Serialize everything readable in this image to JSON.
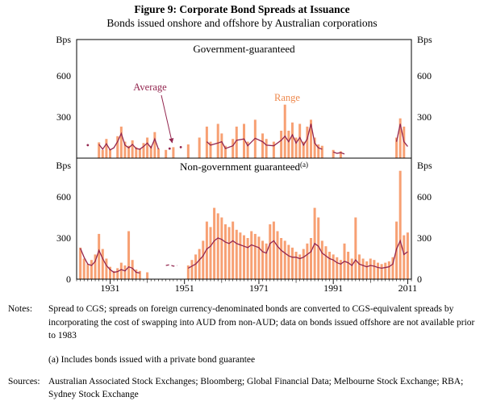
{
  "figure": {
    "title": "Figure 9: Corporate Bond Spreads at Issuance",
    "subtitle": "Bonds issued onshore and offshore by Australian corporations"
  },
  "chart_data": {
    "type": "bar+line",
    "unit": "Bps",
    "x_range": [
      1922,
      2012
    ],
    "x_ticks": [
      1931,
      1951,
      1971,
      1991,
      2011
    ],
    "y_ticks": [
      0,
      300,
      600
    ],
    "legend": {
      "average_label": "Average",
      "range_label": "Range"
    },
    "colors": {
      "range_bar": "#F7A073",
      "range_label": "#EE8A4F",
      "average_line": "#93264F",
      "axis": "#000000"
    },
    "panels": [
      {
        "title": "Government-guaranteed",
        "title_superscript": "",
        "ylabel": "Bps",
        "ylim": [
          0,
          870
        ],
        "bars": [
          [
            1928,
            115
          ],
          [
            1929,
            60
          ],
          [
            1930,
            140
          ],
          [
            1931,
            65
          ],
          [
            1933,
            160
          ],
          [
            1934,
            230
          ],
          [
            1935,
            120
          ],
          [
            1936,
            90
          ],
          [
            1937,
            130
          ],
          [
            1938,
            80
          ],
          [
            1939,
            70
          ],
          [
            1940,
            110
          ],
          [
            1941,
            150
          ],
          [
            1942,
            90
          ],
          [
            1943,
            190
          ],
          [
            1944,
            70
          ],
          [
            1946,
            60
          ],
          [
            1948,
            80
          ],
          [
            1952,
            100
          ],
          [
            1955,
            150
          ],
          [
            1957,
            230
          ],
          [
            1958,
            120
          ],
          [
            1960,
            250
          ],
          [
            1961,
            180
          ],
          [
            1962,
            90
          ],
          [
            1964,
            140
          ],
          [
            1965,
            230
          ],
          [
            1967,
            250
          ],
          [
            1968,
            120
          ],
          [
            1970,
            280
          ],
          [
            1972,
            180
          ],
          [
            1973,
            140
          ],
          [
            1975,
            120
          ],
          [
            1977,
            200
          ],
          [
            1978,
            390
          ],
          [
            1979,
            200
          ],
          [
            1980,
            260
          ],
          [
            1981,
            150
          ],
          [
            1982,
            250
          ],
          [
            1983,
            120
          ],
          [
            1984,
            230
          ],
          [
            1985,
            280
          ],
          [
            1986,
            150
          ],
          [
            1987,
            100
          ],
          [
            1988,
            90
          ],
          [
            1991,
            60
          ],
          [
            1993,
            50
          ],
          [
            2008,
            150
          ],
          [
            2009,
            290
          ],
          [
            2010,
            230
          ]
        ],
        "line_segments": [
          [
            [
              1928,
              100
            ],
            [
              1929,
              65
            ],
            [
              1930,
              105
            ],
            [
              1931,
              60
            ],
            [
              1932,
              75
            ],
            [
              1933,
              120
            ],
            [
              1934,
              180
            ],
            [
              1935,
              95
            ],
            [
              1936,
              75
            ],
            [
              1937,
              100
            ],
            [
              1938,
              70
            ],
            [
              1939,
              65
            ],
            [
              1940,
              85
            ],
            [
              1941,
              110
            ],
            [
              1942,
              75
            ],
            [
              1943,
              140
            ],
            [
              1944,
              65
            ]
          ],
          [
            [
              1957,
              120
            ],
            [
              1958,
              95
            ],
            [
              1960,
              110
            ],
            [
              1961,
              120
            ],
            [
              1962,
              70
            ],
            [
              1964,
              90
            ],
            [
              1965,
              130
            ],
            [
              1967,
              140
            ],
            [
              1968,
              90
            ],
            [
              1970,
              145
            ],
            [
              1972,
              120
            ],
            [
              1973,
              95
            ],
            [
              1975,
              90
            ],
            [
              1977,
              130
            ],
            [
              1978,
              160
            ],
            [
              1979,
              120
            ],
            [
              1980,
              170
            ],
            [
              1981,
              110
            ],
            [
              1982,
              150
            ],
            [
              1983,
              95
            ],
            [
              1984,
              140
            ],
            [
              1985,
              250
            ],
            [
              1986,
              110
            ],
            [
              1987,
              75
            ],
            [
              1988,
              65
            ]
          ],
          [
            [
              1991,
              45
            ],
            [
              1992,
              35
            ],
            [
              1993,
              40
            ],
            [
              1994,
              30
            ]
          ],
          [
            [
              2008,
              120
            ],
            [
              2009,
              250
            ],
            [
              2010,
              120
            ],
            [
              2011,
              85
            ]
          ]
        ],
        "dashed_segments": [],
        "line_points": [
          [
            1925,
            95
          ],
          [
            1947,
            70
          ],
          [
            1950,
            80
          ]
        ]
      },
      {
        "title": "Non-government guaranteed",
        "title_superscript": "(a)",
        "ylabel": "Bps",
        "ylim": [
          0,
          870
        ],
        "bars": [
          [
            1923,
            230
          ],
          [
            1924,
            150
          ],
          [
            1925,
            110
          ],
          [
            1926,
            140
          ],
          [
            1927,
            180
          ],
          [
            1928,
            330
          ],
          [
            1929,
            220
          ],
          [
            1930,
            150
          ],
          [
            1931,
            90
          ],
          [
            1932,
            60
          ],
          [
            1933,
            80
          ],
          [
            1934,
            120
          ],
          [
            1935,
            100
          ],
          [
            1936,
            350
          ],
          [
            1937,
            140
          ],
          [
            1938,
            70
          ],
          [
            1939,
            60
          ],
          [
            1941,
            50
          ],
          [
            1952,
            100
          ],
          [
            1953,
            140
          ],
          [
            1954,
            180
          ],
          [
            1955,
            220
          ],
          [
            1956,
            280
          ],
          [
            1957,
            420
          ],
          [
            1958,
            380
          ],
          [
            1959,
            520
          ],
          [
            1960,
            480
          ],
          [
            1961,
            450
          ],
          [
            1962,
            400
          ],
          [
            1963,
            380
          ],
          [
            1964,
            420
          ],
          [
            1965,
            360
          ],
          [
            1966,
            340
          ],
          [
            1967,
            320
          ],
          [
            1968,
            300
          ],
          [
            1969,
            350
          ],
          [
            1970,
            330
          ],
          [
            1971,
            310
          ],
          [
            1972,
            280
          ],
          [
            1973,
            260
          ],
          [
            1974,
            400
          ],
          [
            1975,
            420
          ],
          [
            1976,
            350
          ],
          [
            1977,
            300
          ],
          [
            1978,
            280
          ],
          [
            1979,
            250
          ],
          [
            1980,
            230
          ],
          [
            1981,
            200
          ],
          [
            1982,
            180
          ],
          [
            1983,
            220
          ],
          [
            1984,
            260
          ],
          [
            1985,
            300
          ],
          [
            1986,
            520
          ],
          [
            1987,
            450
          ],
          [
            1988,
            280
          ],
          [
            1989,
            240
          ],
          [
            1990,
            200
          ],
          [
            1991,
            180
          ],
          [
            1992,
            160
          ],
          [
            1993,
            140
          ],
          [
            1994,
            260
          ],
          [
            1995,
            200
          ],
          [
            1996,
            150
          ],
          [
            1997,
            450
          ],
          [
            1998,
            180
          ],
          [
            1999,
            150
          ],
          [
            2000,
            130
          ],
          [
            2001,
            150
          ],
          [
            2002,
            140
          ],
          [
            2003,
            120
          ],
          [
            2004,
            110
          ],
          [
            2005,
            120
          ],
          [
            2006,
            130
          ],
          [
            2007,
            160
          ],
          [
            2008,
            420
          ],
          [
            2009,
            790
          ],
          [
            2010,
            320
          ],
          [
            2011,
            340
          ]
        ],
        "line_segments": [
          [
            [
              1923,
              225
            ],
            [
              1924,
              160
            ],
            [
              1925,
              110
            ],
            [
              1926,
              100
            ],
            [
              1927,
              130
            ],
            [
              1928,
              210
            ],
            [
              1929,
              150
            ],
            [
              1930,
              100
            ],
            [
              1931,
              70
            ],
            [
              1932,
              50
            ],
            [
              1933,
              55
            ],
            [
              1934,
              70
            ],
            [
              1935,
              60
            ],
            [
              1936,
              90
            ],
            [
              1937,
              80
            ],
            [
              1938,
              50
            ],
            [
              1939,
              45
            ]
          ],
          [
            [
              1952,
              80
            ],
            [
              1953,
              95
            ],
            [
              1954,
              110
            ],
            [
              1955,
              140
            ],
            [
              1956,
              170
            ],
            [
              1957,
              220
            ],
            [
              1958,
              240
            ],
            [
              1959,
              280
            ],
            [
              1960,
              300
            ],
            [
              1961,
              290
            ],
            [
              1962,
              270
            ],
            [
              1963,
              260
            ],
            [
              1964,
              280
            ],
            [
              1965,
              260
            ],
            [
              1966,
              250
            ],
            [
              1967,
              240
            ],
            [
              1968,
              230
            ],
            [
              1969,
              250
            ],
            [
              1970,
              240
            ],
            [
              1971,
              230
            ],
            [
              1972,
              200
            ],
            [
              1973,
              190
            ],
            [
              1974,
              260
            ],
            [
              1975,
              280
            ],
            [
              1976,
              240
            ],
            [
              1977,
              210
            ],
            [
              1978,
              190
            ],
            [
              1979,
              170
            ],
            [
              1980,
              160
            ],
            [
              1981,
              160
            ],
            [
              1982,
              150
            ],
            [
              1983,
              160
            ],
            [
              1984,
              180
            ],
            [
              1985,
              200
            ],
            [
              1986,
              260
            ],
            [
              1987,
              240
            ],
            [
              1988,
              190
            ],
            [
              1989,
              170
            ],
            [
              1990,
              150
            ],
            [
              1991,
              140
            ],
            [
              1992,
              120
            ],
            [
              1993,
              110
            ],
            [
              1994,
              130
            ],
            [
              1995,
              120
            ],
            [
              1996,
              100
            ],
            [
              1997,
              140
            ],
            [
              1998,
              110
            ],
            [
              1999,
              100
            ],
            [
              2000,
              90
            ],
            [
              2001,
              100
            ],
            [
              2002,
              95
            ],
            [
              2003,
              85
            ],
            [
              2004,
              80
            ],
            [
              2005,
              85
            ],
            [
              2006,
              90
            ],
            [
              2007,
              110
            ],
            [
              2008,
              220
            ],
            [
              2009,
              280
            ],
            [
              2010,
              180
            ],
            [
              2011,
              200
            ]
          ]
        ],
        "dashed_segments": [
          [
            [
              1946,
              100
            ],
            [
              1947,
              105
            ],
            [
              1948,
              95
            ],
            [
              1949,
              100
            ]
          ]
        ],
        "line_points": []
      }
    ]
  },
  "notes": {
    "label": "Notes:",
    "lines": [
      "Spread to CGS; spreads on foreign currency-denominated bonds are converted to CGS-equivalent spreads by incorporating the cost of swapping into AUD from non-AUD; data on bonds issued offshore are not available prior to 1983",
      "(a) Includes bonds issued with a private bond guarantee"
    ],
    "sources_label": "Sources:",
    "sources": "Australian Associated Stock Exchanges; Bloomberg; Global Financial Data; Melbourne Stock Exchange; RBA; Sydney Stock Exchange"
  }
}
